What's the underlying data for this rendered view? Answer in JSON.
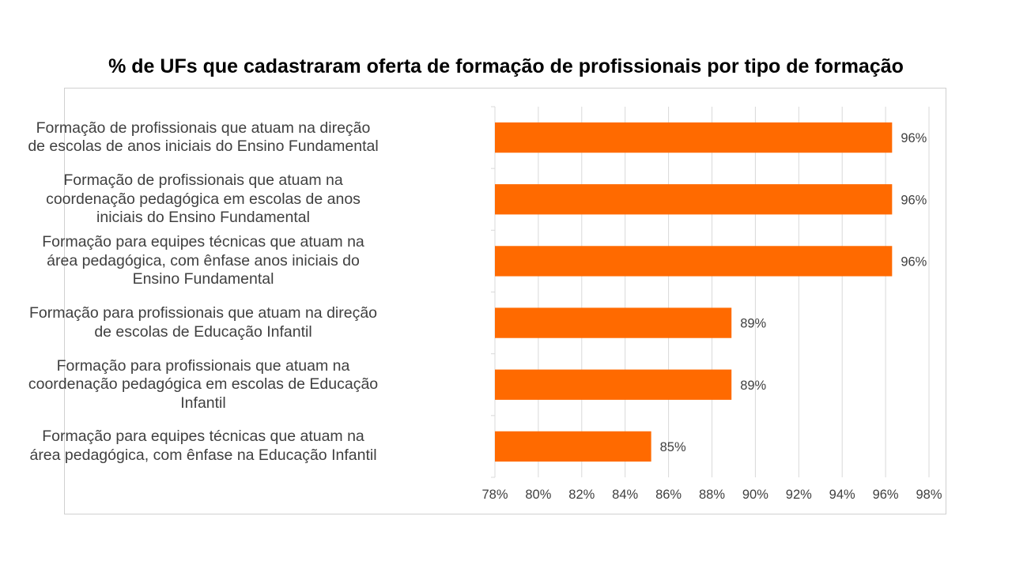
{
  "title": "% de UFs que cadastraram oferta de formação de profissionais por tipo de formação",
  "colors": {
    "bar": "#FF6A00",
    "gridline": "#d9d9d9",
    "axis_text": "#404040"
  },
  "chart_data": {
    "type": "bar",
    "orientation": "horizontal",
    "title": "% de UFs que cadastraram oferta de formação de profissionais por tipo de formação",
    "xlabel": "",
    "ylabel": "",
    "categories": [
      [
        "Formação de profissionais que atuam na direção",
        "de escolas de anos iniciais do Ensino Fundamental"
      ],
      [
        "Formação de profissionais que atuam na",
        "coordenação pedagógica em escolas de anos",
        "iniciais do Ensino Fundamental"
      ],
      [
        "Formação para equipes técnicas que atuam na",
        "área pedagógica, com ênfase anos iniciais do",
        "Ensino Fundamental"
      ],
      [
        "Formação para profissionais que atuam na direção",
        "de escolas de Educação Infantil"
      ],
      [
        "Formação para profissionais que atuam na",
        "coordenação pedagógica em escolas de Educação",
        "Infantil"
      ],
      [
        "Formação para equipes técnicas que atuam na",
        "área pedagógica, com ênfase na Educação Infantil"
      ]
    ],
    "values": [
      96.3,
      96.3,
      96.3,
      88.9,
      88.9,
      85.2
    ],
    "data_labels": [
      "96%",
      "96%",
      "96%",
      "89%",
      "89%",
      "85%"
    ],
    "xlim": [
      78,
      98
    ],
    "xticks": [
      78,
      80,
      82,
      84,
      86,
      88,
      90,
      92,
      94,
      96,
      98
    ],
    "xtick_labels": [
      "78%",
      "80%",
      "82%",
      "84%",
      "86%",
      "88%",
      "90%",
      "92%",
      "94%",
      "96%",
      "98%"
    ],
    "grid": true,
    "legend": "none"
  }
}
